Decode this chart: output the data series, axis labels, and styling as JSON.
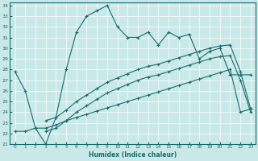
{
  "xlabel": "Humidex (Indice chaleur)",
  "xlim": [
    -0.5,
    23.5
  ],
  "ylim": [
    21,
    34.3
  ],
  "xticks": [
    0,
    1,
    2,
    3,
    4,
    5,
    6,
    7,
    8,
    9,
    10,
    11,
    12,
    13,
    14,
    15,
    16,
    17,
    18,
    19,
    20,
    21,
    22,
    23
  ],
  "yticks": [
    21,
    22,
    23,
    24,
    25,
    26,
    27,
    28,
    29,
    30,
    31,
    32,
    33,
    34
  ],
  "bg_color": "#c9e9e9",
  "line_color": "#1a6b6b",
  "line1_x": [
    0,
    1,
    2,
    3,
    4,
    5,
    6,
    7,
    8,
    9,
    10,
    11,
    12,
    13,
    14,
    15,
    16,
    17,
    18,
    19,
    20,
    21,
    22,
    23
  ],
  "line1_y": [
    27.8,
    26.0,
    22.5,
    21.0,
    23.5,
    28.0,
    31.5,
    33.0,
    33.5,
    34.0,
    32.0,
    31.0,
    31.0,
    31.5,
    30.3,
    31.5,
    31.0,
    31.3,
    29.0,
    29.7,
    30.0,
    27.5,
    27.5,
    27.5
  ],
  "line2_x": [
    3,
    4,
    5,
    6,
    7,
    8,
    9,
    10,
    11,
    12,
    13,
    14,
    15,
    16,
    17,
    18,
    19,
    20,
    21,
    22,
    23
  ],
  "line2_y": [
    23.2,
    23.5,
    24.2,
    25.0,
    25.6,
    26.2,
    26.8,
    27.2,
    27.6,
    28.0,
    28.3,
    28.5,
    28.8,
    29.1,
    29.4,
    29.7,
    30.0,
    30.2,
    30.3,
    27.8,
    24.3
  ],
  "line3_x": [
    3,
    4,
    5,
    6,
    7,
    8,
    9,
    10,
    11,
    12,
    13,
    14,
    15,
    16,
    17,
    18,
    19,
    20,
    21,
    22,
    23
  ],
  "line3_y": [
    22.2,
    22.5,
    23.2,
    24.0,
    24.6,
    25.2,
    25.8,
    26.2,
    26.6,
    27.0,
    27.3,
    27.5,
    27.8,
    28.1,
    28.4,
    28.7,
    29.0,
    29.2,
    29.3,
    27.0,
    24.0
  ],
  "line4_x": [
    0,
    1,
    2,
    3,
    4,
    5,
    6,
    7,
    8,
    9,
    10,
    11,
    12,
    13,
    14,
    15,
    16,
    17,
    18,
    19,
    20,
    21,
    22,
    23
  ],
  "line4_y": [
    22.2,
    22.2,
    22.5,
    22.5,
    22.8,
    23.2,
    23.5,
    23.8,
    24.1,
    24.4,
    24.7,
    25.0,
    25.3,
    25.6,
    25.9,
    26.2,
    26.5,
    26.8,
    27.1,
    27.4,
    27.7,
    28.0,
    24.0,
    24.3
  ],
  "grid_color": "#b0d8d8"
}
